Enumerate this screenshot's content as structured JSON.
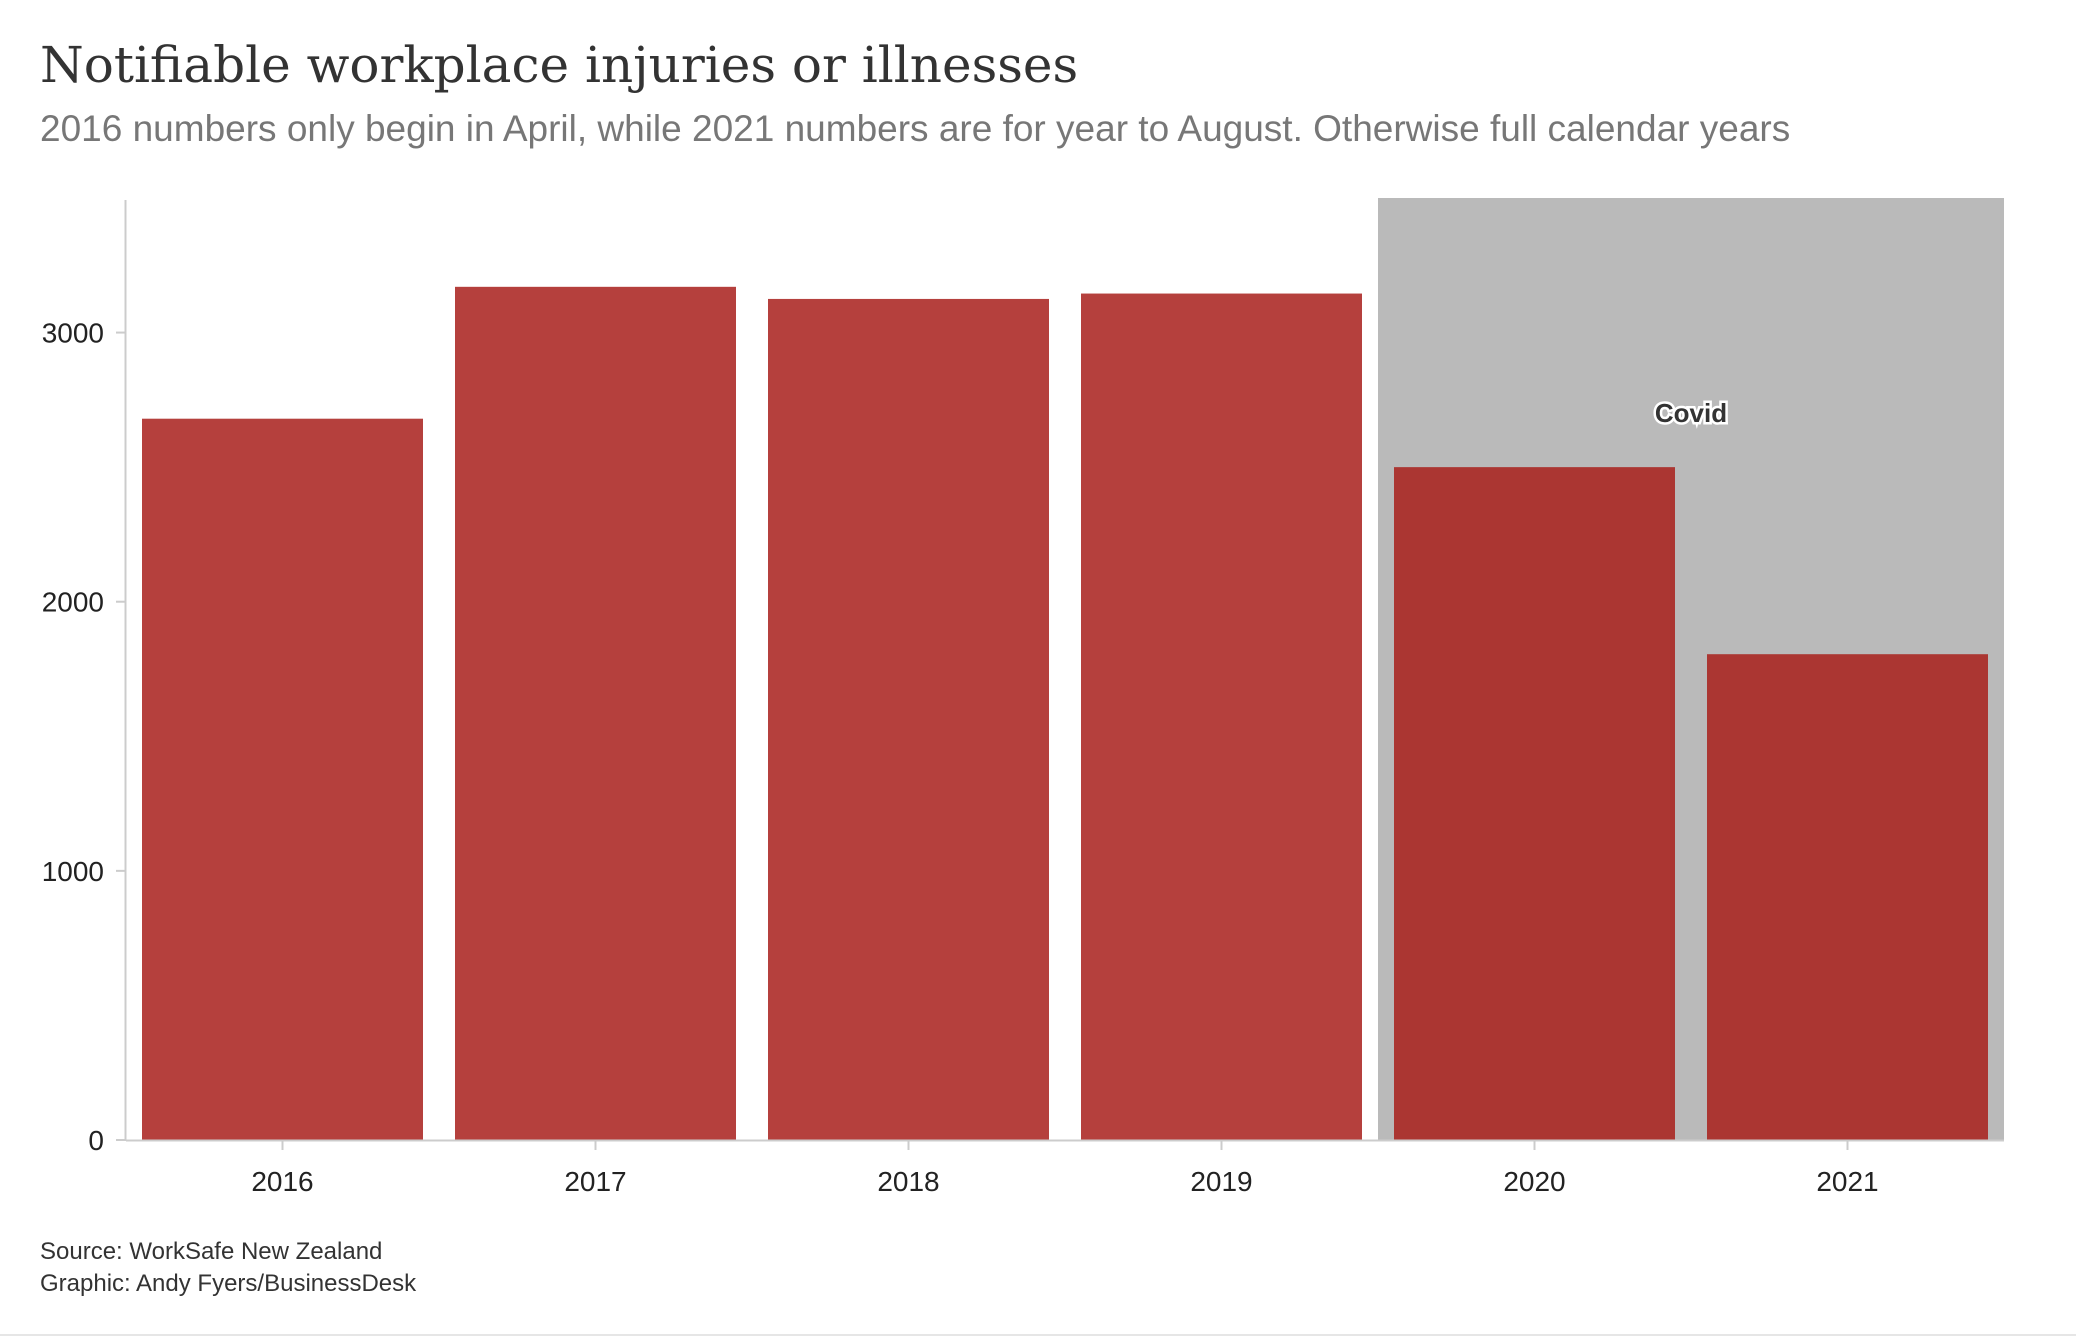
{
  "title": "Notifiable workplace injuries or illnesses",
  "subtitle": "2016 numbers only begin in April, while 2021 numbers are for year to August. Otherwise full calendar years",
  "footer": {
    "source": "Source: WorkSafe New Zealand",
    "credit": "Graphic: Andy Fyers/BusinessDesk"
  },
  "colors": {
    "bar": "#b5403d",
    "bar_highlighted": "#ab3632",
    "shade": "#bababa",
    "axis": "#cccccc"
  },
  "chart_data": {
    "type": "bar",
    "title": "Notifiable workplace injuries or illnesses",
    "subtitle": "2016 numbers only begin in April, while 2021 numbers are for year to August. Otherwise full calendar years",
    "xlabel": "",
    "ylabel": "",
    "categories": [
      "2016",
      "2017",
      "2018",
      "2019",
      "2020",
      "2021"
    ],
    "values": [
      2680,
      3170,
      3125,
      3145,
      2500,
      1805
    ],
    "ylim": [
      0,
      3500
    ],
    "yticks": [
      0,
      1000,
      2000,
      3000
    ],
    "grid": false,
    "legend": "none",
    "shaded_region": {
      "label": "Covid",
      "categories": [
        "2020",
        "2021"
      ]
    }
  }
}
